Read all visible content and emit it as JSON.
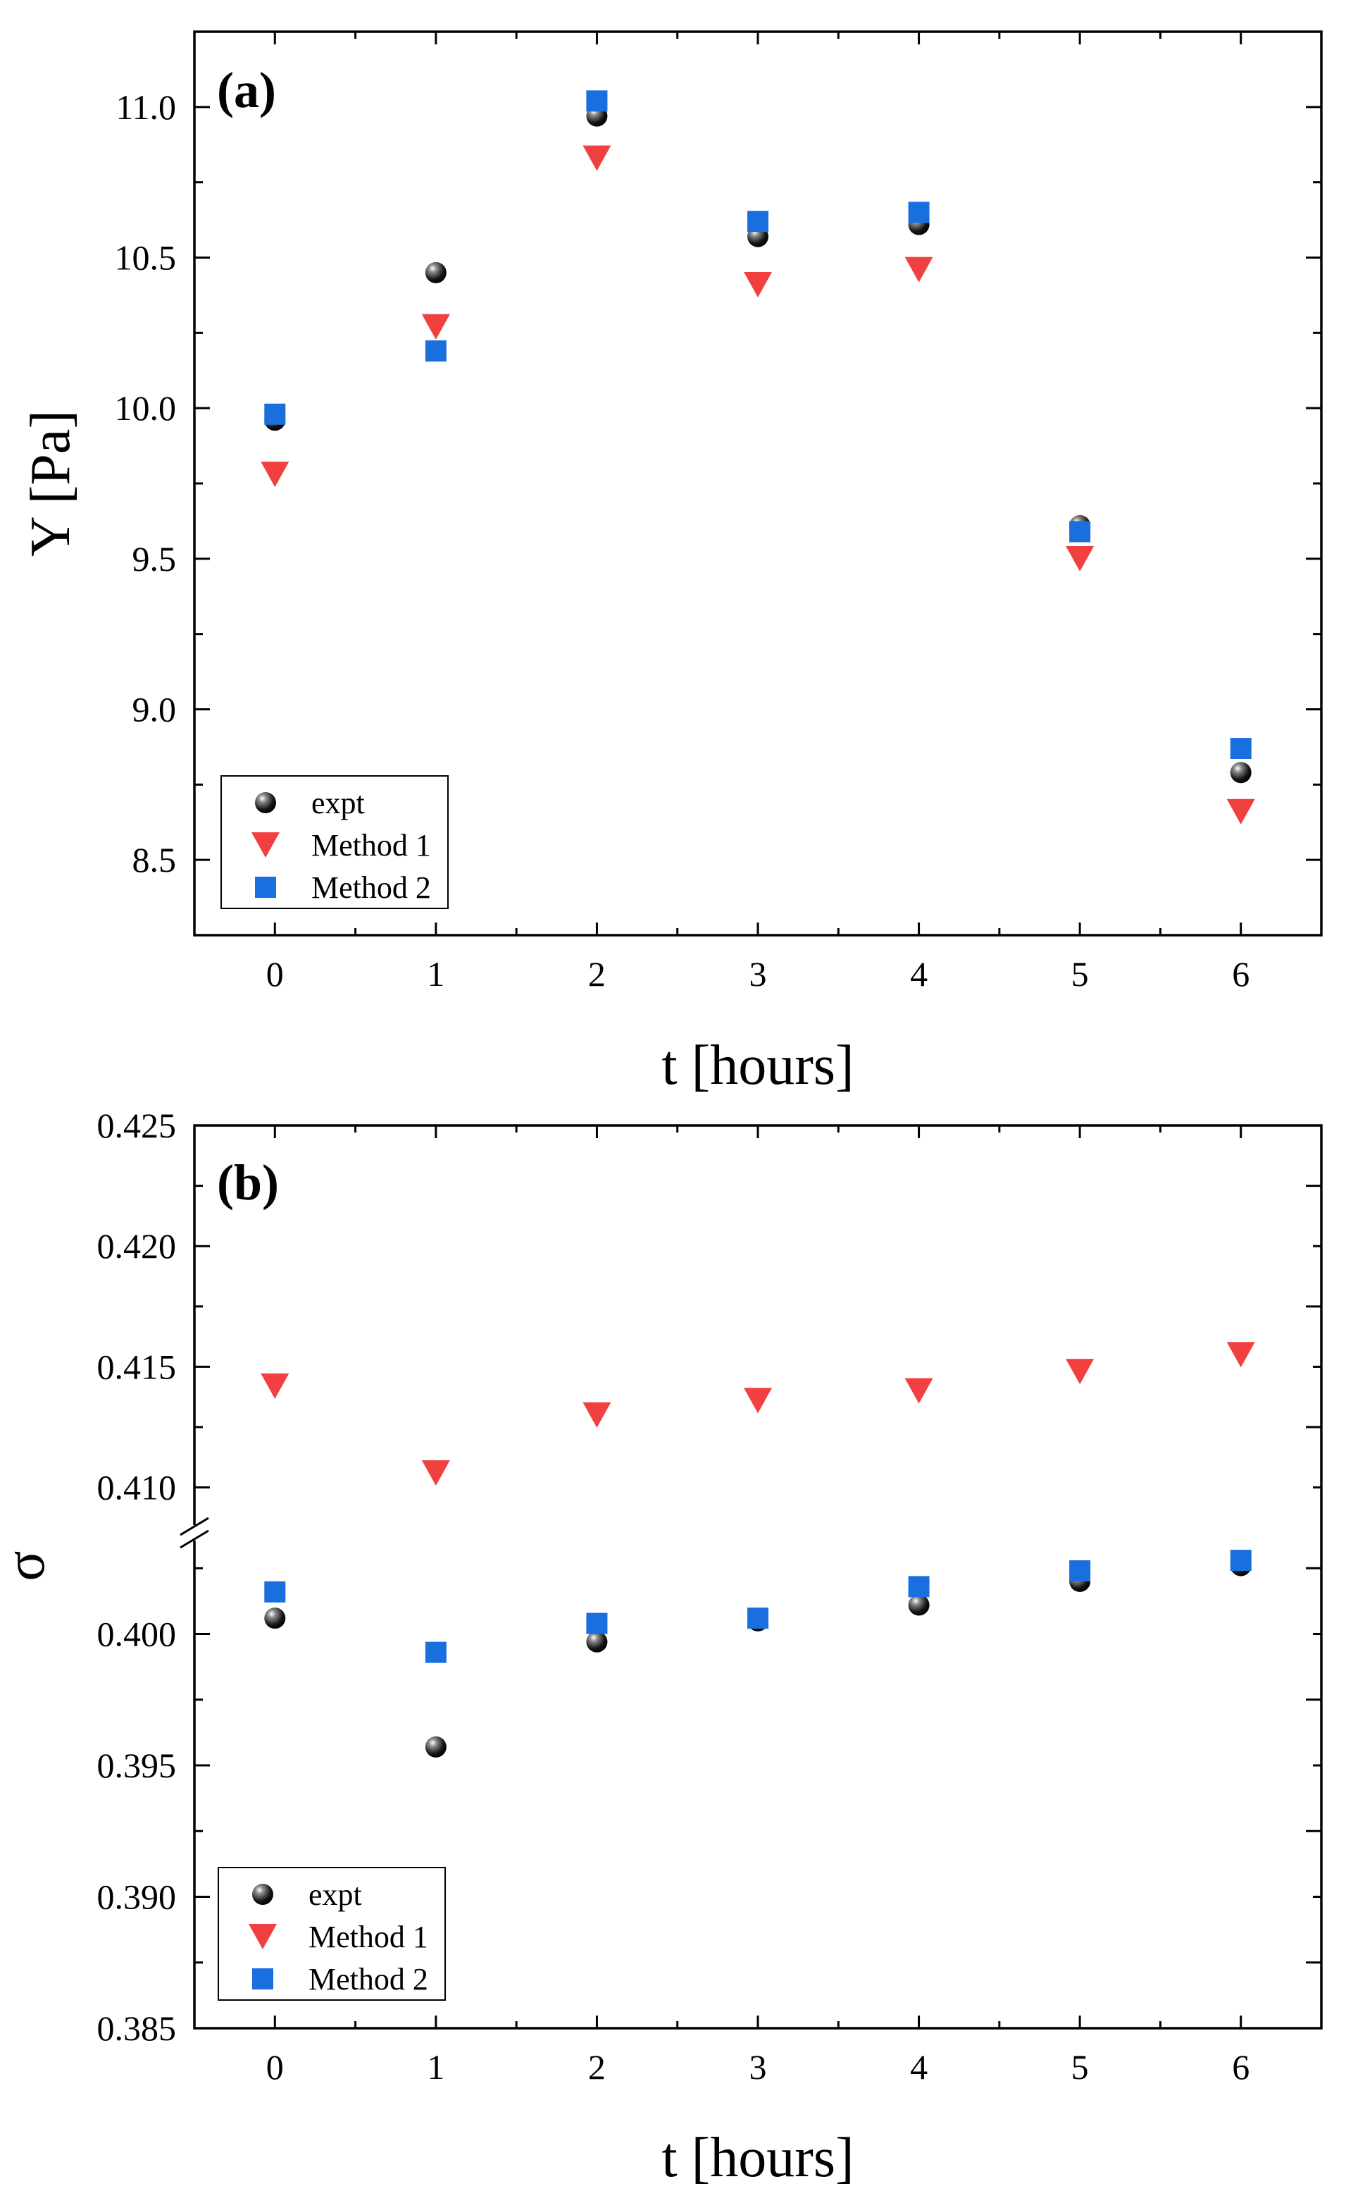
{
  "chart_data": [
    {
      "type": "scatter",
      "panel_label": "(a)",
      "xlabel": "t [hours]",
      "ylabel": "Y [Pa]",
      "xlim": [
        -0.5,
        6.5
      ],
      "ylim": [
        8.25,
        11.25
      ],
      "xticks": [
        0,
        1,
        2,
        3,
        4,
        5,
        6
      ],
      "yticks": [
        8.5,
        9.0,
        9.5,
        10.0,
        10.5,
        11.0
      ],
      "ytick_labels": [
        "8.5",
        "9.0",
        "9.5",
        "10.0",
        "10.5",
        "11.0"
      ],
      "legend_position": "bottom-left",
      "series": [
        {
          "name": "expt",
          "marker": "sphere",
          "color": "#000000",
          "x": [
            0,
            1,
            2,
            3,
            4,
            5,
            6
          ],
          "values": [
            9.96,
            10.45,
            10.97,
            10.57,
            10.61,
            9.61,
            8.79
          ]
        },
        {
          "name": "Method 1",
          "marker": "triangle-down",
          "color": "#f04040",
          "x": [
            0,
            1,
            2,
            3,
            4,
            5,
            6
          ],
          "values": [
            9.78,
            10.27,
            10.83,
            10.41,
            10.46,
            9.5,
            8.66
          ]
        },
        {
          "name": "Method 2",
          "marker": "square",
          "color": "#1a6fdf",
          "x": [
            0,
            1,
            2,
            3,
            4,
            5,
            6
          ],
          "values": [
            9.98,
            10.19,
            11.02,
            10.62,
            10.65,
            9.59,
            8.87
          ]
        }
      ]
    },
    {
      "type": "scatter",
      "panel_label": "(b)",
      "xlabel": "t [hours]",
      "ylabel": "σ",
      "xlim": [
        -0.5,
        6.5
      ],
      "axis_break": true,
      "upper_ylim": [
        0.4085,
        0.425
      ],
      "lower_ylim": [
        0.385,
        0.4035
      ],
      "xticks": [
        0,
        1,
        2,
        3,
        4,
        5,
        6
      ],
      "yticks": [
        0.385,
        0.39,
        0.395,
        0.4,
        0.41,
        0.415,
        0.42,
        0.425
      ],
      "ytick_labels": [
        "0.385",
        "0.390",
        "0.395",
        "0.400",
        "0.410",
        "0.415",
        "0.420",
        "0.425"
      ],
      "legend_position": "bottom-left",
      "series": [
        {
          "name": "expt",
          "marker": "sphere",
          "color": "#000000",
          "x": [
            0,
            1,
            2,
            3,
            4,
            5,
            6
          ],
          "values": [
            0.4006,
            0.3957,
            0.3997,
            0.4005,
            0.4011,
            0.402,
            0.4026
          ]
        },
        {
          "name": "Method 1",
          "marker": "triangle-down",
          "color": "#f04040",
          "x": [
            0,
            1,
            2,
            3,
            4,
            5,
            6
          ],
          "values": [
            0.4142,
            0.4106,
            0.413,
            0.4136,
            0.414,
            0.4148,
            0.4155
          ]
        },
        {
          "name": "Method 2",
          "marker": "square",
          "color": "#1a6fdf",
          "x": [
            0,
            1,
            2,
            3,
            4,
            5,
            6
          ],
          "values": [
            0.4016,
            0.3993,
            0.4004,
            0.4006,
            0.4018,
            0.4024,
            0.4028
          ]
        }
      ]
    }
  ]
}
